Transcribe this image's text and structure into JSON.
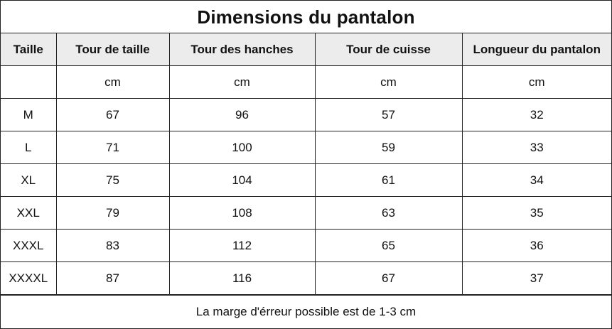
{
  "title": "Dimensions du pantalon",
  "headers": [
    "Taille",
    "Tour de taille",
    "Tour des hanches",
    "Tour de cuisse",
    "Longueur du pantalon"
  ],
  "units": [
    "",
    "cm",
    "cm",
    "cm",
    "cm"
  ],
  "rows": [
    [
      "M",
      "67",
      "96",
      "57",
      "32"
    ],
    [
      "L",
      "71",
      "100",
      "59",
      "33"
    ],
    [
      "XL",
      "75",
      "104",
      "61",
      "34"
    ],
    [
      "XXL",
      "79",
      "108",
      "63",
      "35"
    ],
    [
      "XXXL",
      "83",
      "112",
      "65",
      "36"
    ],
    [
      "XXXXL",
      "87",
      "116",
      "67",
      "37"
    ]
  ],
  "footnote": "La marge d'érreur possible est de 1-3 cm",
  "colors": {
    "header_background": "#ececec",
    "border": "#222222",
    "text": "#111111"
  }
}
